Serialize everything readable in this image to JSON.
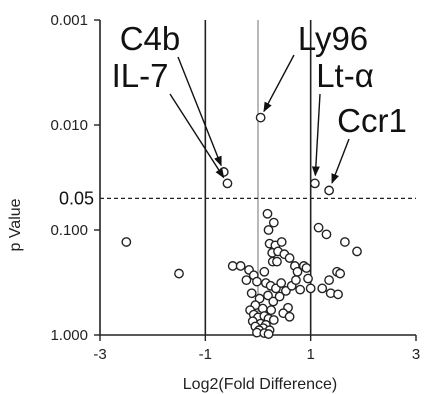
{
  "chart_data": {
    "type": "scatter",
    "title": "",
    "xlabel": "Log2(Fold Difference)",
    "ylabel": "p Value",
    "x_scale": "linear",
    "y_scale": "log-reversed",
    "xlim": [
      -3,
      3
    ],
    "ylim": [
      0.001,
      1.0
    ],
    "x_ticks": [
      "-3",
      "-1",
      "1",
      "3"
    ],
    "x_tick_values": [
      -3,
      -1,
      1,
      3
    ],
    "y_ticks": [
      "0.001",
      "0.010",
      "0.100",
      "1.000"
    ],
    "y_tick_values": [
      0.001,
      0.01,
      0.1,
      1.0
    ],
    "grid": false,
    "vertical_lines": [
      -1,
      0,
      1
    ],
    "significance": {
      "value": 0.05,
      "label": "0.05"
    },
    "annotations": [
      {
        "label": "C4b",
        "x": -0.65,
        "y": 0.028
      },
      {
        "label": "IL-7",
        "x": -0.58,
        "y": 0.036
      },
      {
        "label": "Ly96",
        "x": 0.05,
        "y": 0.0085
      },
      {
        "label": "Lt-α",
        "x": 1.08,
        "y": 0.036
      },
      {
        "label": "Ccr1",
        "x": 1.35,
        "y": 0.042
      }
    ],
    "points": [
      {
        "x": -0.65,
        "y": 0.028
      },
      {
        "x": -0.58,
        "y": 0.036
      },
      {
        "x": 0.05,
        "y": 0.0085
      },
      {
        "x": 1.08,
        "y": 0.036
      },
      {
        "x": 1.35,
        "y": 0.042
      },
      {
        "x": -2.5,
        "y": 0.13
      },
      {
        "x": -1.5,
        "y": 0.26
      },
      {
        "x": 0.18,
        "y": 0.07
      },
      {
        "x": 0.3,
        "y": 0.085
      },
      {
        "x": 0.2,
        "y": 0.1
      },
      {
        "x": 0.22,
        "y": 0.135
      },
      {
        "x": 0.33,
        "y": 0.14
      },
      {
        "x": 0.27,
        "y": 0.165
      },
      {
        "x": 0.38,
        "y": 0.16
      },
      {
        "x": 0.28,
        "y": 0.2
      },
      {
        "x": 0.36,
        "y": 0.2
      },
      {
        "x": 0.45,
        "y": 0.13
      },
      {
        "x": 0.5,
        "y": 0.17
      },
      {
        "x": 0.6,
        "y": 0.185
      },
      {
        "x": 0.7,
        "y": 0.22
      },
      {
        "x": 0.75,
        "y": 0.25
      },
      {
        "x": 0.87,
        "y": 0.22
      },
      {
        "x": 0.92,
        "y": 0.23
      },
      {
        "x": 0.95,
        "y": 0.29
      },
      {
        "x": 1.15,
        "y": 0.095
      },
      {
        "x": 1.3,
        "y": 0.11
      },
      {
        "x": 1.65,
        "y": 0.13
      },
      {
        "x": 1.5,
        "y": 0.25
      },
      {
        "x": 1.56,
        "y": 0.26
      },
      {
        "x": 1.35,
        "y": 0.3
      },
      {
        "x": 1.22,
        "y": 0.36
      },
      {
        "x": 1.38,
        "y": 0.4
      },
      {
        "x": 1.52,
        "y": 0.41
      },
      {
        "x": 1.0,
        "y": 0.36
      },
      {
        "x": 1.88,
        "y": 0.16
      },
      {
        "x": -0.48,
        "y": 0.22
      },
      {
        "x": -0.33,
        "y": 0.22
      },
      {
        "x": -0.17,
        "y": 0.24
      },
      {
        "x": -0.08,
        "y": 0.27
      },
      {
        "x": -0.22,
        "y": 0.3
      },
      {
        "x": -0.02,
        "y": 0.31
      },
      {
        "x": 0.12,
        "y": 0.25
      },
      {
        "x": 0.15,
        "y": 0.32
      },
      {
        "x": 0.24,
        "y": 0.34
      },
      {
        "x": 0.34,
        "y": 0.36
      },
      {
        "x": 0.44,
        "y": 0.32
      },
      {
        "x": 0.53,
        "y": 0.38
      },
      {
        "x": 0.64,
        "y": 0.34
      },
      {
        "x": 0.72,
        "y": 0.3
      },
      {
        "x": 0.8,
        "y": 0.37
      },
      {
        "x": -0.12,
        "y": 0.4
      },
      {
        "x": 0.03,
        "y": 0.45
      },
      {
        "x": 0.19,
        "y": 0.42
      },
      {
        "x": 0.29,
        "y": 0.48
      },
      {
        "x": 0.41,
        "y": 0.43
      },
      {
        "x": 0.57,
        "y": 0.55
      },
      {
        "x": 0.48,
        "y": 0.62
      },
      {
        "x": 0.6,
        "y": 0.67
      },
      {
        "x": -0.05,
        "y": 0.52
      },
      {
        "x": 0.09,
        "y": 0.56
      },
      {
        "x": 0.25,
        "y": 0.58
      },
      {
        "x": -0.15,
        "y": 0.58
      },
      {
        "x": -0.08,
        "y": 0.64
      },
      {
        "x": 0.0,
        "y": 0.68
      },
      {
        "x": 0.12,
        "y": 0.66
      },
      {
        "x": 0.2,
        "y": 0.7
      },
      {
        "x": 0.3,
        "y": 0.72
      },
      {
        "x": -0.1,
        "y": 0.74
      },
      {
        "x": 0.05,
        "y": 0.78
      },
      {
        "x": 0.15,
        "y": 0.8
      },
      {
        "x": -0.05,
        "y": 0.83
      },
      {
        "x": 0.1,
        "y": 0.86
      },
      {
        "x": 0.02,
        "y": 0.9
      },
      {
        "x": 0.22,
        "y": 0.9
      },
      {
        "x": -0.02,
        "y": 0.95
      },
      {
        "x": 0.12,
        "y": 0.96
      },
      {
        "x": 0.2,
        "y": 0.98
      }
    ]
  }
}
